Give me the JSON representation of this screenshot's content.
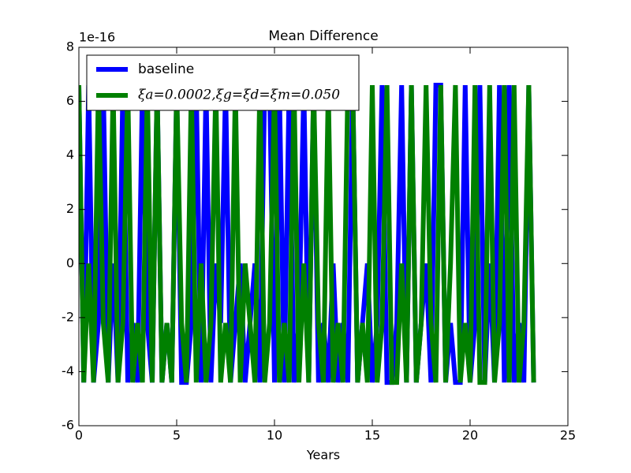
{
  "chart_data": {
    "type": "line",
    "title": "Mean Difference",
    "xlabel": "Years",
    "y_offset_label": "1e-16",
    "xlim": [
      0,
      25
    ],
    "xticks": [
      0,
      5,
      10,
      15,
      20,
      25
    ],
    "ylim": [
      -6,
      8
    ],
    "yticks": [
      -6,
      -4,
      -2,
      0,
      2,
      4,
      6,
      8
    ],
    "legend": "upper left",
    "x": [
      0,
      0.25,
      0.5,
      0.75,
      1,
      1.25,
      1.5,
      1.75,
      2,
      2.25,
      2.5,
      2.75,
      3,
      3.25,
      3.5,
      3.75,
      4,
      4.25,
      4.5,
      4.75,
      5,
      5.25,
      5.5,
      5.75,
      6,
      6.25,
      6.5,
      6.75,
      7,
      7.25,
      7.5,
      7.75,
      8,
      8.25,
      8.5,
      8.75,
      9,
      9.25,
      9.5,
      9.75,
      10,
      10.25,
      10.5,
      10.75,
      11,
      11.25,
      11.5,
      11.75,
      12,
      12.25,
      12.5,
      12.75,
      13,
      13.25,
      13.5,
      13.75,
      14,
      14.25,
      14.5,
      14.75,
      15,
      15.25,
      15.5,
      15.75,
      16,
      16.25,
      16.5,
      16.75,
      17,
      17.25,
      17.5,
      17.75,
      18,
      18.25,
      18.5,
      18.75,
      19,
      19.25,
      19.5,
      19.75,
      20,
      20.25,
      20.5,
      20.75,
      21,
      21.25,
      21.5,
      21.75,
      22,
      22.25,
      22.5,
      22.75,
      23,
      23.25
    ],
    "series": [
      {
        "name": "baseline",
        "color": "#0000ff",
        "values": [
          6.6,
          -4.4,
          6.6,
          -4.4,
          -2.2,
          6.6,
          -4.4,
          0,
          -4.4,
          6.6,
          -4.4,
          -2.2,
          -4.4,
          6.6,
          -2.2,
          -4.4,
          6.6,
          -4.4,
          -2.2,
          -4.4,
          6.6,
          -4.4,
          -4.4,
          -2.2,
          6.6,
          -4.4,
          6.6,
          -4.4,
          0,
          -2.2,
          6.6,
          -4.4,
          -2.2,
          0,
          -4.4,
          -2.2,
          0,
          -4.4,
          6.6,
          6.6,
          -4.4,
          6.6,
          -4.4,
          6.6,
          -4.4,
          -2.2,
          6.6,
          -4.4,
          6.6,
          -4.4,
          -2.2,
          -4.4,
          0,
          -4.4,
          -2.2,
          -4.4,
          6.6,
          -4.4,
          -2.2,
          0,
          -4.4,
          -2.2,
          6.6,
          -4.4,
          -4.4,
          -2.2,
          6.6,
          -4.4,
          6.6,
          -4.4,
          -2.2,
          0,
          -4.4,
          6.6,
          6.6,
          -4.4,
          -2.2,
          -4.4,
          -4.4,
          6.6,
          -4.4,
          -2.2,
          6.6,
          -4.4,
          0,
          -4.4,
          6.6,
          -4.4,
          6.6,
          -4.4,
          -2.2,
          -4.4,
          6.6,
          -4.4
        ]
      },
      {
        "name": "ξa=0.0002,ξg=ξd=ξm=0.050",
        "color": "#008000",
        "values": [
          6.6,
          -4.4,
          0,
          -4.4,
          6.6,
          -2.2,
          -4.4,
          6.6,
          -4.4,
          -2.2,
          6.6,
          -4.4,
          -2.2,
          -4.4,
          6.6,
          -4.4,
          6.6,
          -4.4,
          -2.2,
          -4.4,
          6.6,
          -2.2,
          -4.4,
          6.6,
          -4.4,
          0,
          -4.4,
          -2.2,
          6.6,
          -4.4,
          -2.2,
          -4.4,
          6.6,
          -4.4,
          0,
          -2.2,
          -4.4,
          6.6,
          -4.4,
          -2.2,
          6.6,
          -4.4,
          -2.2,
          -4.4,
          6.6,
          -4.4,
          0,
          -4.4,
          6.6,
          -2.2,
          -4.4,
          6.6,
          -4.4,
          -2.2,
          -4.4,
          6.6,
          6.6,
          -4.4,
          -2.2,
          -4.4,
          6.6,
          -4.4,
          -2.2,
          6.6,
          -4.4,
          -4.4,
          0,
          -4.4,
          6.6,
          -4.4,
          -2.2,
          6.6,
          -2.2,
          -4.4,
          6.6,
          -4.4,
          0,
          6.6,
          -4.4,
          -2.2,
          -4.4,
          6.6,
          -4.4,
          -4.4,
          6.6,
          -4.4,
          -2.2,
          6.6,
          -4.4,
          6.6,
          -4.4,
          -2.2,
          6.6,
          -4.4
        ]
      }
    ]
  }
}
